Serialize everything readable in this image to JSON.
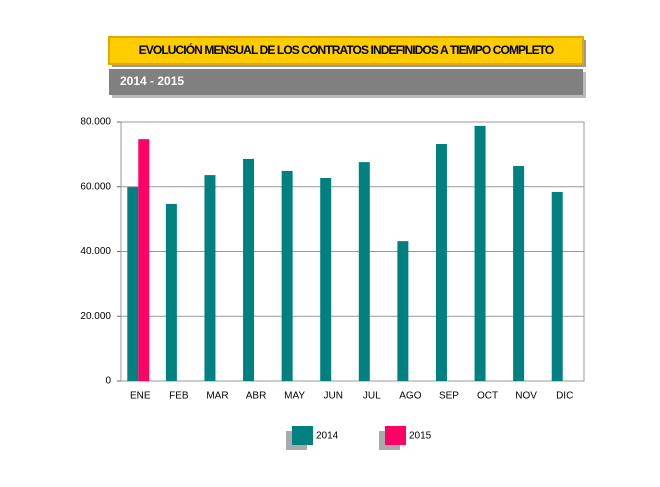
{
  "chart_data": {
    "type": "bar",
    "title": "EVOLUCIÓN MENSUAL DE LOS CONTRATOS INDEFINIDOS A TIEMPO COMPLETO",
    "subtitle": "2014 - 2015",
    "categories": [
      "ENE",
      "FEB",
      "MAR",
      "ABR",
      "MAY",
      "JUN",
      "JUL",
      "AGO",
      "SEP",
      "OCT",
      "NOV",
      "DIC"
    ],
    "series": [
      {
        "name": "2014",
        "color": "#008080",
        "values": [
          59900,
          54700,
          63600,
          68600,
          64900,
          62700,
          67600,
          43200,
          73200,
          78800,
          66400,
          58400
        ]
      },
      {
        "name": "2015",
        "color": "#ff0066",
        "values": [
          74700,
          null,
          null,
          null,
          null,
          null,
          null,
          null,
          null,
          null,
          null,
          null
        ]
      }
    ],
    "ylim": [
      0,
      80000
    ],
    "yticks": [
      0,
      {
        "value": 20000,
        "label": "20.000"
      },
      {
        "value": 40000,
        "label": "40.000"
      },
      {
        "value": 60000,
        "label": "60.000"
      },
      {
        "value": 80000,
        "label": "80.000"
      }
    ],
    "grid": true,
    "legend": "bottom"
  }
}
